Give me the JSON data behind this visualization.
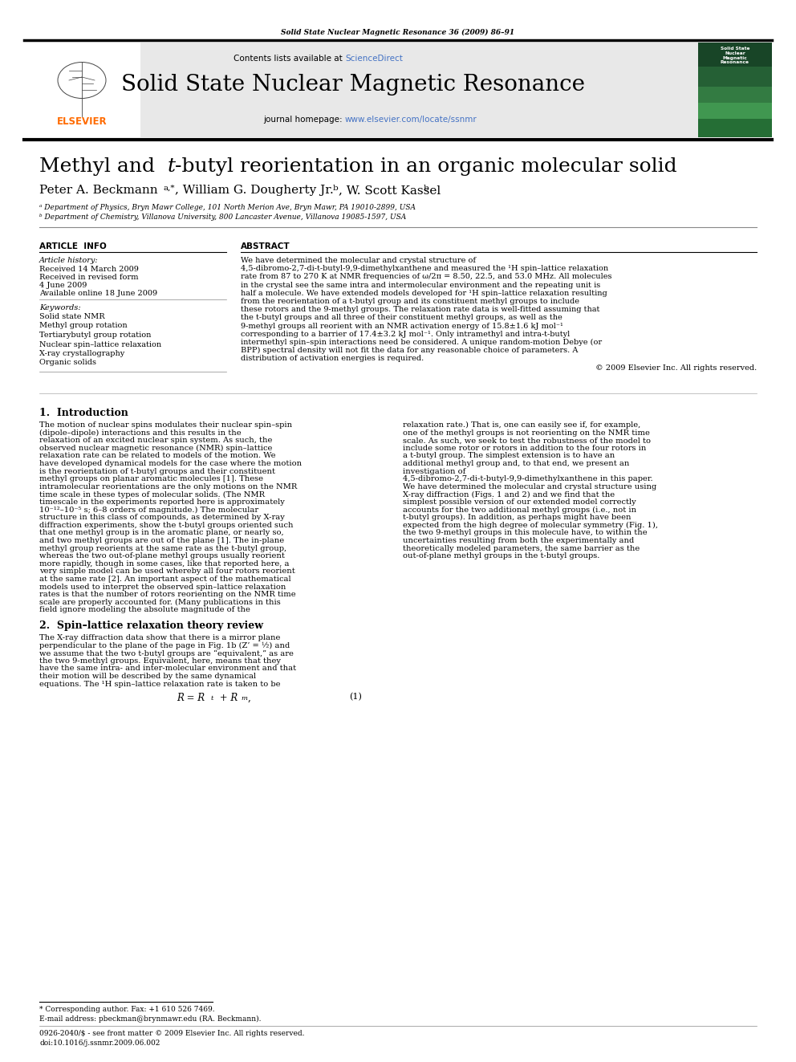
{
  "page_title": "Solid State Nuclear Magnetic Resonance 36 (2009) 86–91",
  "journal_name": "Solid State Nuclear Magnetic Resonance",
  "contents_line": "Contents lists available at ScienceDirect",
  "sciencedirect_color": "#4472C4",
  "journal_url": "journal homepage: www.elsevier.com/locate/ssnmr",
  "url_color": "#4472C4",
  "article_title": "Methyl and t-butyl reorientation in an organic molecular solid",
  "affiliation_a": "ᵃ Department of Physics, Bryn Mawr College, 101 North Merion Ave, Bryn Mawr, PA 19010-2899, USA",
  "affiliation_b": "ᵇ Department of Chemistry, Villanova University, 800 Lancaster Avenue, Villanova 19085-1597, USA",
  "article_info_header": "ARTICLE  INFO",
  "abstract_header": "ABSTRACT",
  "article_history_label": "Article history:",
  "received_1": "Received 14 March 2009",
  "received_revised": "Received in revised form",
  "received_revised_date": "4 June 2009",
  "available_online": "Available online 18 June 2009",
  "keywords_label": "Keywords:",
  "keywords": [
    "Solid state NMR",
    "Methyl group rotation",
    "Tertiarybutyl group rotation",
    "Nuclear spin–lattice relaxation",
    "X-ray crystallography",
    "Organic solids"
  ],
  "abstract_text": "We have determined the molecular and crystal structure of 4,5-dibromo-2,7-di-t-butyl-9,9-dimethylxanthene and measured the ¹H spin–lattice relaxation rate from 87 to 270 K at NMR frequencies of ω/2π = 8.50, 22.5, and 53.0 MHz. All molecules in the crystal see the same intra and intermolecular environment and the repeating unit is half a molecule. We have extended models developed for ¹H spin–lattice relaxation resulting from the reorientation of a t-butyl group and its constituent methyl groups to include these rotors and the 9-methyl groups. The relaxation rate data is well-fitted assuming that the t-butyl groups and all three of their constituent methyl groups, as well as the 9-methyl groups all reorient with an NMR activation energy of 15.8±1.6 kJ mol⁻¹ corresponding to a barrier of 17.4±3.2 kJ mol⁻¹. Only intramethyl and intra-t-butyl intermethyl spin–spin interactions need be considered. A unique random-motion Debye (or BPP) spectral density will not fit the data for any reasonable choice of parameters. A distribution of activation energies is required.",
  "copyright_text": "© 2009 Elsevier Inc. All rights reserved.",
  "intro_text_left": "    The motion of nuclear spins modulates their nuclear spin–spin (dipole–dipole) interactions and this results in the relaxation of an excited nuclear spin system. As such, the observed nuclear magnetic resonance (NMR) spin–lattice relaxation rate can be related to models of the motion. We have developed dynamical models for the case where the motion is the reorientation of t-butyl groups and their constituent methyl groups on planar aromatic molecules [1]. These intramolecular reorientations are the only motions on the NMR time scale in these types of molecular solids. (The NMR timescale in the experiments reported here is approximately 10⁻¹²–10⁻⁵ s; 6–8 orders of magnitude.) The molecular structure in this class of compounds, as determined by X-ray diffraction experiments, show the t-butyl groups oriented such that one methyl group is in the aromatic plane, or nearly so, and two methyl groups are out of the plane [1]. The in-plane methyl group reorients at the same rate as the t-butyl group, whereas the two out-of-plane methyl groups usually reorient more rapidly, though in some cases, like that reported here, a very simple model can be used whereby all four rotors reorient at the same rate [2]. An important aspect of the mathematical models used to interpret the observed spin–lattice relaxation rates is that the number of rotors reorienting on the NMR time scale are properly accounted for. (Many publications in this field ignore modeling the absolute magnitude of the",
  "intro_text_right": "relaxation rate.) That is, one can easily see if, for example, one of the methyl groups is not reorienting on the NMR time scale. As such, we seek to test the robustness of the model to include some rotor or rotors in addition to the four rotors in a t-butyl group. The simplest extension is to have an additional methyl group and, to that end, we present an investigation of 4,5-dibromo-2,7-di-t-butyl-9,9-dimethylxanthene in this paper. We have determined the molecular and crystal structure using X-ray diffraction (Figs. 1 and 2) and we find that the simplest possible version of our extended model correctly accounts for the two additional methyl groups (i.e., not in t-butyl groups). In addition, as perhaps might have been expected from the high degree of molecular symmetry (Fig. 1), the two 9-methyl groups in this molecule have, to within the uncertainties resulting from both the experimentally and theoretically modeled parameters, the same barrier as the out-of-plane methyl groups in the t-butyl groups.",
  "section2_text": "    The X-ray diffraction data show that there is a mirror plane perpendicular to the plane of the page in Fig. 1b (Z’ = ½) and we assume that the two t-butyl groups are “equivalent,” as are the two 9-methyl groups. Equivalent, here, means that they have the same intra- and inter-molecular environment and that their motion will be described by the same dynamical equations. The ¹H spin–lattice relaxation rate is taken to be",
  "footnote_star": "* Corresponding author. Fax: +1 610 526 7469.",
  "footnote_email": "E-mail address: pbeckman@brynmawr.edu (RA. Beckmann).",
  "issn_line": "0926-2040/$ - see front matter © 2009 Elsevier Inc. All rights reserved.",
  "doi_line": "doi:10.1016/j.ssnmr.2009.06.002",
  "header_bg": "#e8e8e8",
  "elsevier_orange": "#FF6B00",
  "sciencedirect_blue": "#4472C4"
}
